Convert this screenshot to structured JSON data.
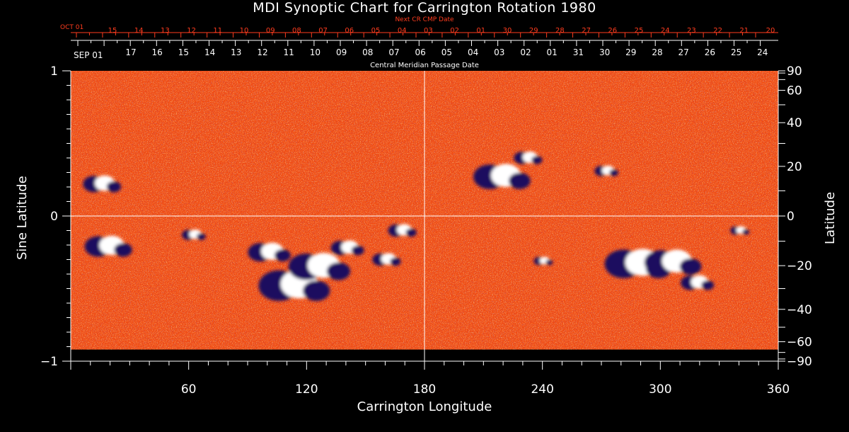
{
  "chart_data": {
    "type": "heatmap",
    "title": "MDI Synoptic Chart for Carrington Rotation 1980",
    "xlabel": "Carrington Longitude",
    "ylabel_left": "Sine Latitude",
    "ylabel_right": "Latitude",
    "xlim": [
      0,
      360
    ],
    "ylim": [
      -1,
      1
    ],
    "x_ticks": [
      "60",
      "120",
      "180",
      "240",
      "300",
      "360"
    ],
    "y_ticks_left": [
      "1",
      "0",
      "−1"
    ],
    "y_ticks_right": [
      "90",
      "60",
      "40",
      "20",
      "0",
      "−20",
      "−40",
      "−60",
      "−90"
    ],
    "y_ticks_right_deg": [
      90,
      60,
      40,
      20,
      0,
      -20,
      -40,
      -60,
      -90
    ],
    "grid": "crosshair at longitude 180 and sine latitude 0",
    "top_axis_red": {
      "label": "Next CR CMP Date",
      "first_label": "OCT 01",
      "ticks": [
        "15",
        "14",
        "13",
        "12",
        "11",
        "10",
        "09",
        "08",
        "07",
        "06",
        "05",
        "04",
        "03",
        "02",
        "01",
        "30",
        "29",
        "28",
        "27",
        "26",
        "25",
        "24",
        "23",
        "22",
        "21",
        "20"
      ]
    },
    "top_axis_white": {
      "label": "Central Meridian Passage Date",
      "first_label": "SEP 01",
      "ticks": [
        "17",
        "16",
        "15",
        "14",
        "13",
        "12",
        "11",
        "10",
        "09",
        "08",
        "07",
        "06",
        "05",
        "04",
        "03",
        "02",
        "01",
        "31",
        "30",
        "29",
        "28",
        "27",
        "26",
        "25",
        "24"
      ]
    },
    "active_regions": [
      {
        "lon": 18,
        "sinlat": -0.21,
        "size": 10
      },
      {
        "lon": 15,
        "sinlat": 0.22,
        "size": 8
      },
      {
        "lon": 62,
        "sinlat": -0.13,
        "size": 5
      },
      {
        "lon": 100,
        "sinlat": -0.25,
        "size": 9
      },
      {
        "lon": 112,
        "sinlat": -0.48,
        "size": 15
      },
      {
        "lon": 125,
        "sinlat": -0.35,
        "size": 13
      },
      {
        "lon": 140,
        "sinlat": -0.22,
        "size": 7
      },
      {
        "lon": 160,
        "sinlat": -0.3,
        "size": 6
      },
      {
        "lon": 168,
        "sinlat": -0.1,
        "size": 6
      },
      {
        "lon": 218,
        "sinlat": 0.27,
        "size": 12
      },
      {
        "lon": 232,
        "sinlat": 0.4,
        "size": 6
      },
      {
        "lon": 272,
        "sinlat": 0.31,
        "size": 5
      },
      {
        "lon": 287,
        "sinlat": -0.33,
        "size": 14
      },
      {
        "lon": 305,
        "sinlat": -0.32,
        "size": 12
      },
      {
        "lon": 318,
        "sinlat": -0.46,
        "size": 7
      },
      {
        "lon": 240,
        "sinlat": -0.31,
        "size": 4
      },
      {
        "lon": 340,
        "sinlat": -0.1,
        "size": 4
      }
    ],
    "colors": {
      "background": "#000000",
      "field": "#f04a12",
      "positive": "#ffffff",
      "negative": "#1a0a5e",
      "red_axis": "#ff3c1e"
    }
  }
}
